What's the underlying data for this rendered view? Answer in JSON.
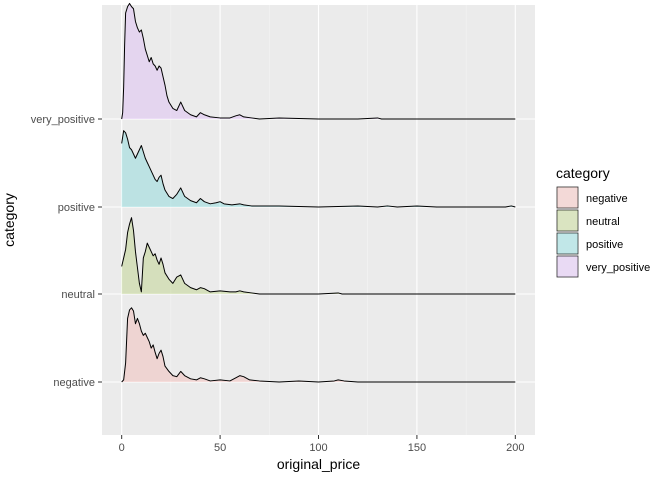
{
  "chart_data": {
    "type": "area",
    "subtype": "ridgeline-density",
    "title": "",
    "xlabel": "original_price",
    "ylabel": "category",
    "xlim": [
      -10,
      210
    ],
    "xticks": [
      0,
      50,
      100,
      150,
      200
    ],
    "grid": true,
    "legend": {
      "title": "category",
      "placement": "right"
    },
    "series": [
      {
        "name": "negative",
        "fill": "#F8766D",
        "points": [
          [
            0,
            0.0
          ],
          [
            1,
            0.02
          ],
          [
            2,
            0.18
          ],
          [
            3,
            0.6
          ],
          [
            4,
            0.68
          ],
          [
            5,
            0.7
          ],
          [
            6,
            0.67
          ],
          [
            7,
            0.55
          ],
          [
            8,
            0.6
          ],
          [
            9,
            0.55
          ],
          [
            10,
            0.48
          ],
          [
            11,
            0.44
          ],
          [
            12,
            0.46
          ],
          [
            13,
            0.42
          ],
          [
            14,
            0.38
          ],
          [
            15,
            0.32
          ],
          [
            16,
            0.35
          ],
          [
            17,
            0.28
          ],
          [
            18,
            0.22
          ],
          [
            19,
            0.27
          ],
          [
            20,
            0.3
          ],
          [
            21,
            0.24
          ],
          [
            22,
            0.15
          ],
          [
            24,
            0.1
          ],
          [
            26,
            0.06
          ],
          [
            28,
            0.05
          ],
          [
            30,
            0.1
          ],
          [
            32,
            0.06
          ],
          [
            35,
            0.03
          ],
          [
            38,
            0.02
          ],
          [
            40,
            0.04
          ],
          [
            42,
            0.03
          ],
          [
            45,
            0.01
          ],
          [
            50,
            0.02
          ],
          [
            55,
            0.01
          ],
          [
            58,
            0.04
          ],
          [
            60,
            0.06
          ],
          [
            62,
            0.05
          ],
          [
            65,
            0.02
          ],
          [
            70,
            0.01
          ],
          [
            80,
            0.0
          ],
          [
            90,
            0.01
          ],
          [
            100,
            0.0
          ],
          [
            108,
            0.01
          ],
          [
            110,
            0.02
          ],
          [
            113,
            0.01
          ],
          [
            120,
            0.0
          ],
          [
            140,
            0.0
          ],
          [
            160,
            0.0
          ],
          [
            180,
            0.0
          ],
          [
            200,
            0.0
          ]
        ]
      },
      {
        "name": "neutral",
        "fill": "#7CAE00",
        "points": [
          [
            0,
            0.26
          ],
          [
            1,
            0.34
          ],
          [
            2,
            0.42
          ],
          [
            3,
            0.58
          ],
          [
            4,
            0.66
          ],
          [
            5,
            0.72
          ],
          [
            6,
            0.6
          ],
          [
            7,
            0.4
          ],
          [
            8,
            0.25
          ],
          [
            9,
            0.1
          ],
          [
            10,
            0.02
          ],
          [
            11,
            0.34
          ],
          [
            12,
            0.4
          ],
          [
            13,
            0.48
          ],
          [
            14,
            0.44
          ],
          [
            15,
            0.4
          ],
          [
            16,
            0.36
          ],
          [
            17,
            0.38
          ],
          [
            18,
            0.32
          ],
          [
            19,
            0.28
          ],
          [
            20,
            0.34
          ],
          [
            21,
            0.28
          ],
          [
            22,
            0.2
          ],
          [
            24,
            0.14
          ],
          [
            26,
            0.1
          ],
          [
            28,
            0.16
          ],
          [
            30,
            0.18
          ],
          [
            32,
            0.1
          ],
          [
            35,
            0.06
          ],
          [
            38,
            0.04
          ],
          [
            40,
            0.06
          ],
          [
            42,
            0.05
          ],
          [
            45,
            0.02
          ],
          [
            50,
            0.03
          ],
          [
            55,
            0.02
          ],
          [
            58,
            0.02
          ],
          [
            60,
            0.03
          ],
          [
            62,
            0.02
          ],
          [
            66,
            0.01
          ],
          [
            70,
            0.0
          ],
          [
            80,
            0.0
          ],
          [
            100,
            0.0
          ],
          [
            110,
            0.01
          ],
          [
            112,
            0.0
          ],
          [
            130,
            0.0
          ],
          [
            150,
            0.0
          ],
          [
            170,
            0.0
          ],
          [
            200,
            0.0
          ]
        ]
      },
      {
        "name": "positive",
        "fill": "#00BFC4",
        "points": [
          [
            0,
            0.6
          ],
          [
            1,
            0.72
          ],
          [
            2,
            0.7
          ],
          [
            3,
            0.64
          ],
          [
            4,
            0.56
          ],
          [
            5,
            0.54
          ],
          [
            6,
            0.5
          ],
          [
            7,
            0.46
          ],
          [
            8,
            0.5
          ],
          [
            9,
            0.54
          ],
          [
            10,
            0.58
          ],
          [
            11,
            0.52
          ],
          [
            12,
            0.46
          ],
          [
            13,
            0.42
          ],
          [
            14,
            0.38
          ],
          [
            15,
            0.34
          ],
          [
            16,
            0.3
          ],
          [
            17,
            0.26
          ],
          [
            18,
            0.24
          ],
          [
            19,
            0.28
          ],
          [
            20,
            0.3
          ],
          [
            21,
            0.22
          ],
          [
            22,
            0.16
          ],
          [
            24,
            0.1
          ],
          [
            26,
            0.08
          ],
          [
            28,
            0.12
          ],
          [
            30,
            0.18
          ],
          [
            32,
            0.1
          ],
          [
            35,
            0.06
          ],
          [
            38,
            0.04
          ],
          [
            40,
            0.08
          ],
          [
            42,
            0.05
          ],
          [
            45,
            0.03
          ],
          [
            48,
            0.04
          ],
          [
            50,
            0.05
          ],
          [
            52,
            0.03
          ],
          [
            56,
            0.02
          ],
          [
            60,
            0.03
          ],
          [
            62,
            0.02
          ],
          [
            66,
            0.01
          ],
          [
            70,
            0.01
          ],
          [
            80,
            0.01
          ],
          [
            100,
            0.0
          ],
          [
            120,
            0.01
          ],
          [
            130,
            0.0
          ],
          [
            135,
            0.01
          ],
          [
            140,
            0.0
          ],
          [
            150,
            0.01
          ],
          [
            160,
            0.0
          ],
          [
            180,
            0.0
          ],
          [
            195,
            0.0
          ],
          [
            198,
            0.01
          ],
          [
            200,
            0.0
          ]
        ]
      },
      {
        "name": "very_positive",
        "fill": "#C77CFF",
        "points": [
          [
            0,
            0.0
          ],
          [
            0.5,
            0.06
          ],
          [
            1,
            0.3
          ],
          [
            1.5,
            0.7
          ],
          [
            2,
            1.0
          ],
          [
            3,
            1.06
          ],
          [
            4,
            1.09
          ],
          [
            5,
            1.06
          ],
          [
            6,
            1.04
          ],
          [
            7,
            0.92
          ],
          [
            8,
            0.86
          ],
          [
            9,
            0.82
          ],
          [
            10,
            0.84
          ],
          [
            11,
            0.76
          ],
          [
            12,
            0.66
          ],
          [
            13,
            0.6
          ],
          [
            14,
            0.54
          ],
          [
            15,
            0.58
          ],
          [
            16,
            0.52
          ],
          [
            17,
            0.5
          ],
          [
            18,
            0.46
          ],
          [
            19,
            0.5
          ],
          [
            20,
            0.48
          ],
          [
            21,
            0.4
          ],
          [
            22,
            0.32
          ],
          [
            23,
            0.22
          ],
          [
            24,
            0.16
          ],
          [
            26,
            0.1
          ],
          [
            28,
            0.08
          ],
          [
            30,
            0.16
          ],
          [
            32,
            0.08
          ],
          [
            35,
            0.04
          ],
          [
            38,
            0.02
          ],
          [
            40,
            0.06
          ],
          [
            42,
            0.04
          ],
          [
            45,
            0.02
          ],
          [
            50,
            0.01
          ],
          [
            55,
            0.01
          ],
          [
            58,
            0.03
          ],
          [
            60,
            0.04
          ],
          [
            62,
            0.02
          ],
          [
            66,
            0.01
          ],
          [
            70,
            0.0
          ],
          [
            80,
            0.01
          ],
          [
            100,
            0.0
          ],
          [
            120,
            0.0
          ],
          [
            130,
            0.01
          ],
          [
            132,
            0.0
          ],
          [
            150,
            0.0
          ],
          [
            180,
            0.0
          ],
          [
            200,
            0.0
          ]
        ]
      }
    ]
  }
}
